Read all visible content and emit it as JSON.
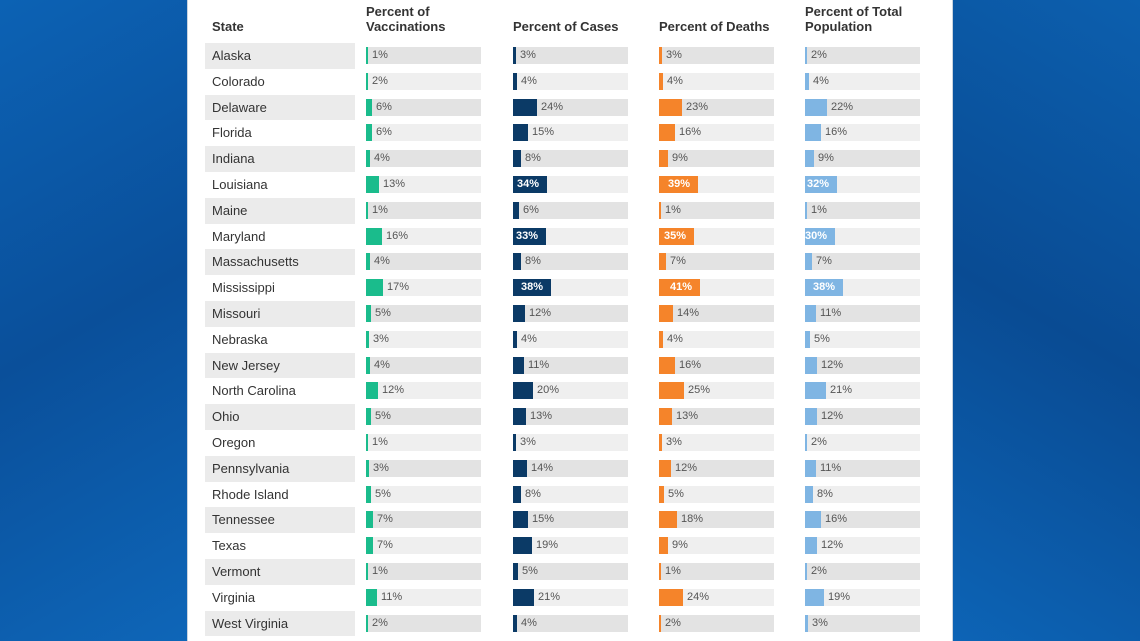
{
  "headers": {
    "state": "State",
    "vaccinations": "Percent of\nVaccinations",
    "cases": "Percent of Cases",
    "deaths": "Percent of Deaths",
    "population": "Percent of Total\nPopulation"
  },
  "colors": {
    "vaccinations": "#1abc8c",
    "cases": "#0b3a66",
    "deaths": "#f5842a",
    "population": "#7fb5e3"
  },
  "rows": [
    {
      "state": "Alaska",
      "vac": "1%",
      "cases": "3%",
      "deaths": "3%",
      "pop": "2%"
    },
    {
      "state": "Colorado",
      "vac": "2%",
      "cases": "4%",
      "deaths": "4%",
      "pop": "4%"
    },
    {
      "state": "Delaware",
      "vac": "6%",
      "cases": "24%",
      "deaths": "23%",
      "pop": "22%"
    },
    {
      "state": "Florida",
      "vac": "6%",
      "cases": "15%",
      "deaths": "16%",
      "pop": "16%"
    },
    {
      "state": "Indiana",
      "vac": "4%",
      "cases": "8%",
      "deaths": "9%",
      "pop": "9%"
    },
    {
      "state": "Louisiana",
      "vac": "13%",
      "cases": "34%",
      "deaths": "39%",
      "pop": "32%"
    },
    {
      "state": "Maine",
      "vac": "1%",
      "cases": "6%",
      "deaths": "1%",
      "pop": "1%"
    },
    {
      "state": "Maryland",
      "vac": "16%",
      "cases": "33%",
      "deaths": "35%",
      "pop": "30%"
    },
    {
      "state": "Massachusetts",
      "vac": "4%",
      "cases": "8%",
      "deaths": "7%",
      "pop": "7%"
    },
    {
      "state": "Mississippi",
      "vac": "17%",
      "cases": "38%",
      "deaths": "41%",
      "pop": "38%"
    },
    {
      "state": "Missouri",
      "vac": "5%",
      "cases": "12%",
      "deaths": "14%",
      "pop": "11%"
    },
    {
      "state": "Nebraska",
      "vac": "3%",
      "cases": "4%",
      "deaths": "4%",
      "pop": "5%"
    },
    {
      "state": "New Jersey",
      "vac": "4%",
      "cases": "11%",
      "deaths": "16%",
      "pop": "12%"
    },
    {
      "state": "North Carolina",
      "vac": "12%",
      "cases": "20%",
      "deaths": "25%",
      "pop": "21%"
    },
    {
      "state": "Ohio",
      "vac": "5%",
      "cases": "13%",
      "deaths": "13%",
      "pop": "12%"
    },
    {
      "state": "Oregon",
      "vac": "1%",
      "cases": "3%",
      "deaths": "3%",
      "pop": "2%"
    },
    {
      "state": "Pennsylvania",
      "vac": "3%",
      "cases": "14%",
      "deaths": "12%",
      "pop": "11%"
    },
    {
      "state": "Rhode Island",
      "vac": "5%",
      "cases": "8%",
      "deaths": "5%",
      "pop": "8%"
    },
    {
      "state": "Tennessee",
      "vac": "7%",
      "cases": "15%",
      "deaths": "18%",
      "pop": "16%"
    },
    {
      "state": "Texas",
      "vac": "7%",
      "cases": "19%",
      "deaths": "9%",
      "pop": "12%"
    },
    {
      "state": "Vermont",
      "vac": "1%",
      "cases": "5%",
      "deaths": "1%",
      "pop": "2%"
    },
    {
      "state": "Virginia",
      "vac": "11%",
      "cases": "21%",
      "deaths": "24%",
      "pop": "19%"
    },
    {
      "state": "West Virginia",
      "vac": "2%",
      "cases": "4%",
      "deaths": "2%",
      "pop": "3%"
    }
  ]
}
